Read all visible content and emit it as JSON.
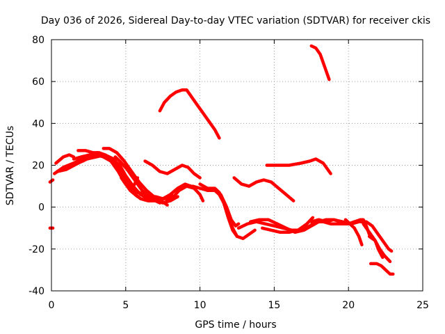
{
  "chart_data": {
    "type": "line",
    "title": "Day 036 of 2026, Sidereal Day-to-day VTEC variation (SDTVAR) for receiver ckis",
    "xlabel": "GPS time / hours",
    "ylabel": "SDTVAR / TECUs",
    "xlim": [
      0,
      25
    ],
    "ylim": [
      -40,
      80
    ],
    "xticks": [
      0,
      5,
      10,
      15,
      20,
      25
    ],
    "yticks": [
      -40,
      -20,
      0,
      20,
      40,
      60,
      80
    ],
    "grid": true,
    "series_color": "#ff0000",
    "series": [
      {
        "name": "trace-01",
        "x": [
          -0.1,
          0.1
        ],
        "y": [
          -10,
          -10
        ]
      },
      {
        "name": "trace-02",
        "x": [
          -0.1,
          0.1
        ],
        "y": [
          12,
          13
        ]
      },
      {
        "name": "trace-03",
        "x": [
          0.3,
          0.8,
          1.2,
          1.5
        ],
        "y": [
          21,
          24,
          25,
          24
        ]
      },
      {
        "name": "trace-04",
        "x": [
          0.2,
          0.8,
          1.5,
          2.0,
          2.5,
          3.0,
          3.5,
          4.0,
          4.5,
          4.9,
          5.3,
          5.8
        ],
        "y": [
          16,
          19,
          21,
          23,
          24,
          25,
          24,
          22,
          17,
          12,
          8,
          5
        ]
      },
      {
        "name": "trace-05",
        "x": [
          0.4,
          1.0,
          1.8,
          2.4,
          3.0,
          3.6,
          4.2,
          4.7,
          5.1,
          5.6,
          6.2
        ],
        "y": [
          17,
          18,
          21,
          23,
          24,
          25,
          23,
          18,
          12,
          8,
          6
        ]
      },
      {
        "name": "trace-06",
        "x": [
          0.8,
          1.5,
          2.1,
          2.6,
          3.1,
          3.6,
          4.1,
          4.6,
          5.0,
          5.6,
          6.2,
          6.8,
          7.4,
          7.8,
          8.1
        ],
        "y": [
          19,
          21,
          22,
          24,
          25,
          24,
          22,
          17,
          12,
          8,
          6,
          5,
          4,
          4,
          6
        ]
      },
      {
        "name": "trace-07",
        "x": [
          1.5,
          2.0,
          2.6,
          3.1,
          3.6,
          4.1,
          4.6,
          5.1,
          5.8,
          6.5,
          7.0,
          7.5,
          8.0,
          8.5,
          9.0,
          9.4
        ],
        "y": [
          23,
          24,
          25,
          26,
          25,
          23,
          19,
          12,
          7,
          5,
          5,
          4,
          6,
          9,
          11,
          10
        ]
      },
      {
        "name": "trace-08",
        "x": [
          1.8,
          2.3,
          2.8,
          3.2,
          3.6,
          4.1,
          4.6,
          5.0,
          5.5,
          6.0,
          6.5,
          7.0,
          7.3
        ],
        "y": [
          27,
          27,
          26,
          26,
          25,
          23,
          20,
          15,
          10,
          6,
          4,
          3,
          2
        ]
      },
      {
        "name": "trace-09",
        "x": [
          3.5,
          3.9,
          4.4,
          4.9,
          5.4,
          5.9,
          6.4,
          6.9,
          7.4,
          7.8
        ],
        "y": [
          28,
          28,
          26,
          22,
          17,
          12,
          8,
          5,
          3,
          1
        ]
      },
      {
        "name": "trace-10",
        "x": [
          4.3,
          4.6,
          5.1,
          5.6,
          6.1,
          6.6,
          7.1,
          7.6,
          8.1,
          8.6,
          9.1,
          9.6,
          10.0,
          10.2
        ],
        "y": [
          24,
          22,
          18,
          13,
          8,
          5,
          3,
          2,
          4,
          8,
          10,
          9,
          6,
          3
        ]
      },
      {
        "name": "trace-11",
        "x": [
          4.7,
          5.0,
          5.5,
          6.0,
          6.5,
          7.0,
          7.5,
          8.0,
          8.5
        ],
        "y": [
          14,
          11,
          7,
          4,
          3,
          3,
          2,
          3,
          5
        ]
      },
      {
        "name": "trace-12",
        "x": [
          5.8,
          5.6,
          5.4
        ],
        "y": [
          14,
          11,
          8
        ]
      },
      {
        "name": "trace-13",
        "x": [
          6.3,
          6.8,
          7.3,
          7.8,
          8.3,
          8.8,
          9.2,
          9.6,
          10.0
        ],
        "y": [
          22,
          20,
          17,
          16,
          18,
          20,
          19,
          16,
          14
        ]
      },
      {
        "name": "trace-14",
        "x": [
          7.3,
          7.6,
          8.0,
          8.4,
          8.8,
          9.1,
          9.4,
          9.8,
          10.2,
          10.6,
          11.0,
          11.3
        ],
        "y": [
          46,
          50,
          53,
          55,
          56,
          56,
          53,
          49,
          45,
          41,
          37,
          33
        ]
      },
      {
        "name": "trace-15",
        "x": [
          9.5,
          10.0,
          10.5,
          11.0,
          11.3,
          11.6,
          11.9,
          12.2,
          12.5,
          12.9,
          13.3,
          13.7
        ],
        "y": [
          10,
          9,
          8,
          8,
          6,
          2,
          -4,
          -10,
          -14,
          -15,
          -13,
          -11
        ]
      },
      {
        "name": "trace-16",
        "x": [
          10.0,
          10.5,
          11.0,
          11.3,
          11.6,
          11.9,
          12.2,
          12.5
        ],
        "y": [
          11,
          9,
          9,
          7,
          2,
          -5,
          -11,
          -14
        ]
      },
      {
        "name": "trace-17",
        "x": [
          10.5,
          11.0,
          11.4,
          11.8,
          12.1,
          12.4,
          12.6
        ],
        "y": [
          8,
          8,
          6,
          0,
          -6,
          -9,
          -8
        ]
      },
      {
        "name": "trace-18",
        "x": [
          12.3,
          12.8,
          13.3,
          13.8,
          14.3,
          14.8,
          15.3,
          15.8,
          16.3
        ],
        "y": [
          14,
          11,
          10,
          12,
          13,
          12,
          9,
          6,
          3
        ]
      },
      {
        "name": "trace-19",
        "x": [
          12.6,
          13.2,
          13.8,
          14.4,
          15.0,
          15.6,
          16.2,
          16.8,
          17.4,
          17.8,
          18.3,
          18.8,
          19.4,
          20.0,
          20.4
        ],
        "y": [
          -10,
          -8,
          -7,
          -8,
          -9,
          -10,
          -11,
          -11,
          -9,
          -7,
          -7,
          -8,
          -8,
          -8,
          -7
        ]
      },
      {
        "name": "trace-20",
        "x": [
          13.4,
          14.0,
          14.6,
          15.2,
          15.8,
          16.4,
          17.0,
          17.5,
          18.0,
          18.5,
          19.0,
          19.6,
          20.2,
          20.7
        ],
        "y": [
          -7,
          -6,
          -6,
          -8,
          -10,
          -12,
          -11,
          -9,
          -7,
          -6,
          -6,
          -7,
          -8,
          -7
        ]
      },
      {
        "name": "trace-21",
        "x": [
          14.2,
          14.8,
          15.4,
          16.0,
          16.6,
          17.2,
          17.6
        ],
        "y": [
          -10,
          -11,
          -12,
          -12,
          -11,
          -8,
          -5
        ]
      },
      {
        "name": "trace-22",
        "x": [
          14.5,
          15.2,
          16.0,
          16.8,
          17.4,
          17.8,
          18.3,
          18.8
        ],
        "y": [
          20,
          20,
          20,
          21,
          22,
          23,
          21,
          16
        ]
      },
      {
        "name": "trace-23",
        "x": [
          17.5,
          17.8,
          18.1,
          18.4,
          18.7
        ],
        "y": [
          77,
          76,
          73,
          67,
          61
        ]
      },
      {
        "name": "trace-24",
        "x": [
          17.5,
          18.0,
          18.5,
          19.0,
          19.5,
          20.0,
          20.4,
          20.8,
          21.0,
          21.2,
          21.4
        ],
        "y": [
          -7,
          -6,
          -7,
          -6,
          -7,
          -8,
          -7,
          -6,
          -6,
          -9,
          -13
        ]
      },
      {
        "name": "trace-25",
        "x": [
          19.8,
          20.1,
          20.4,
          20.7,
          20.9
        ],
        "y": [
          -6,
          -8,
          -10,
          -14,
          -18
        ]
      },
      {
        "name": "trace-26",
        "x": [
          20.8,
          21.2,
          21.6,
          22.0,
          22.4,
          22.7,
          22.9
        ],
        "y": [
          -7,
          -7,
          -9,
          -13,
          -17,
          -20,
          -21
        ]
      },
      {
        "name": "trace-27",
        "x": [
          21.0,
          21.4,
          21.8,
          22.1,
          22.4,
          22.8
        ],
        "y": [
          -8,
          -12,
          -16,
          -20,
          -23,
          -26
        ]
      },
      {
        "name": "trace-28",
        "x": [
          21.4,
          21.8,
          22.0,
          22.3
        ],
        "y": [
          -14,
          -16,
          -20,
          -24
        ]
      },
      {
        "name": "trace-29",
        "x": [
          21.5,
          21.9,
          22.2,
          22.5,
          22.8,
          23.0
        ],
        "y": [
          -27,
          -27,
          -28,
          -30,
          -32,
          -32
        ]
      }
    ]
  }
}
